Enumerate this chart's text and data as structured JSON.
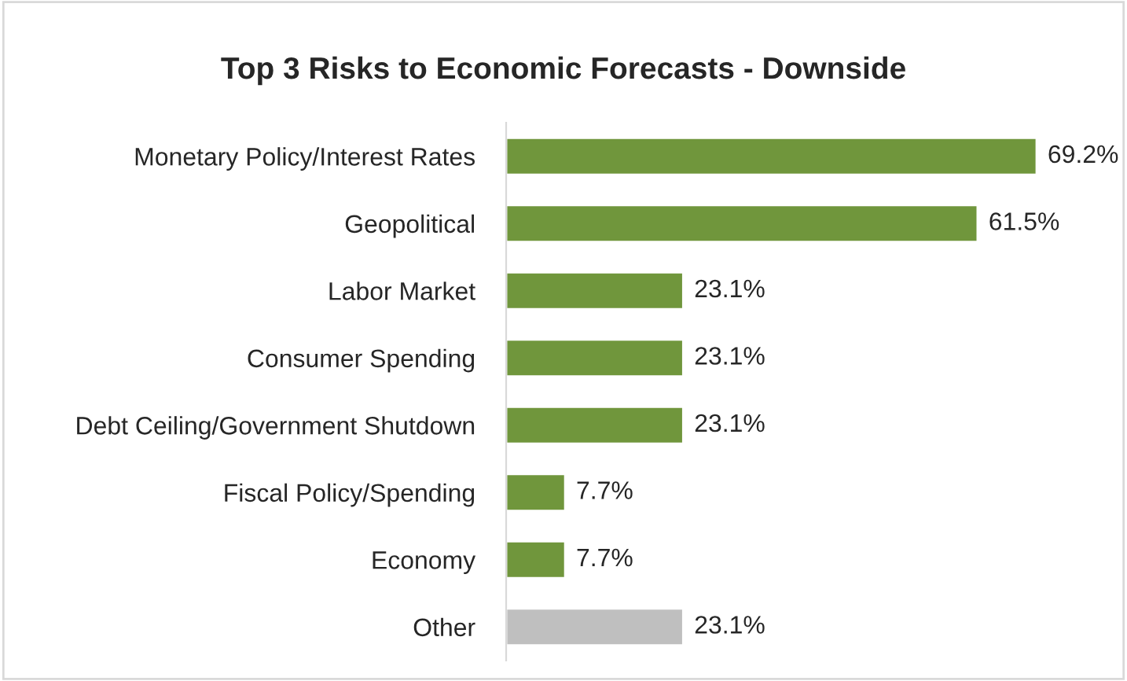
{
  "chart_data": {
    "type": "bar",
    "orientation": "horizontal",
    "title": "Top 3 Risks to Economic Forecasts - Downside",
    "categories": [
      "Monetary Policy/Interest Rates",
      "Geopolitical",
      "Labor Market",
      "Consumer Spending",
      "Debt Ceiling/Government Shutdown",
      "Fiscal Policy/Spending",
      "Economy",
      "Other"
    ],
    "values": [
      69.2,
      61.5,
      23.1,
      23.1,
      23.1,
      7.7,
      7.7,
      23.1
    ],
    "colors": [
      "#70963c",
      "#70963c",
      "#70963c",
      "#70963c",
      "#70963c",
      "#70963c",
      "#70963c",
      "#bfbfbf"
    ],
    "value_labels": [
      "69.2%",
      "61.5%",
      "23.1%",
      "23.1%",
      "23.1%",
      "7.7%",
      "7.7%",
      "23.1%"
    ],
    "tick_labels": "y",
    "grid": false,
    "legend": false
  }
}
